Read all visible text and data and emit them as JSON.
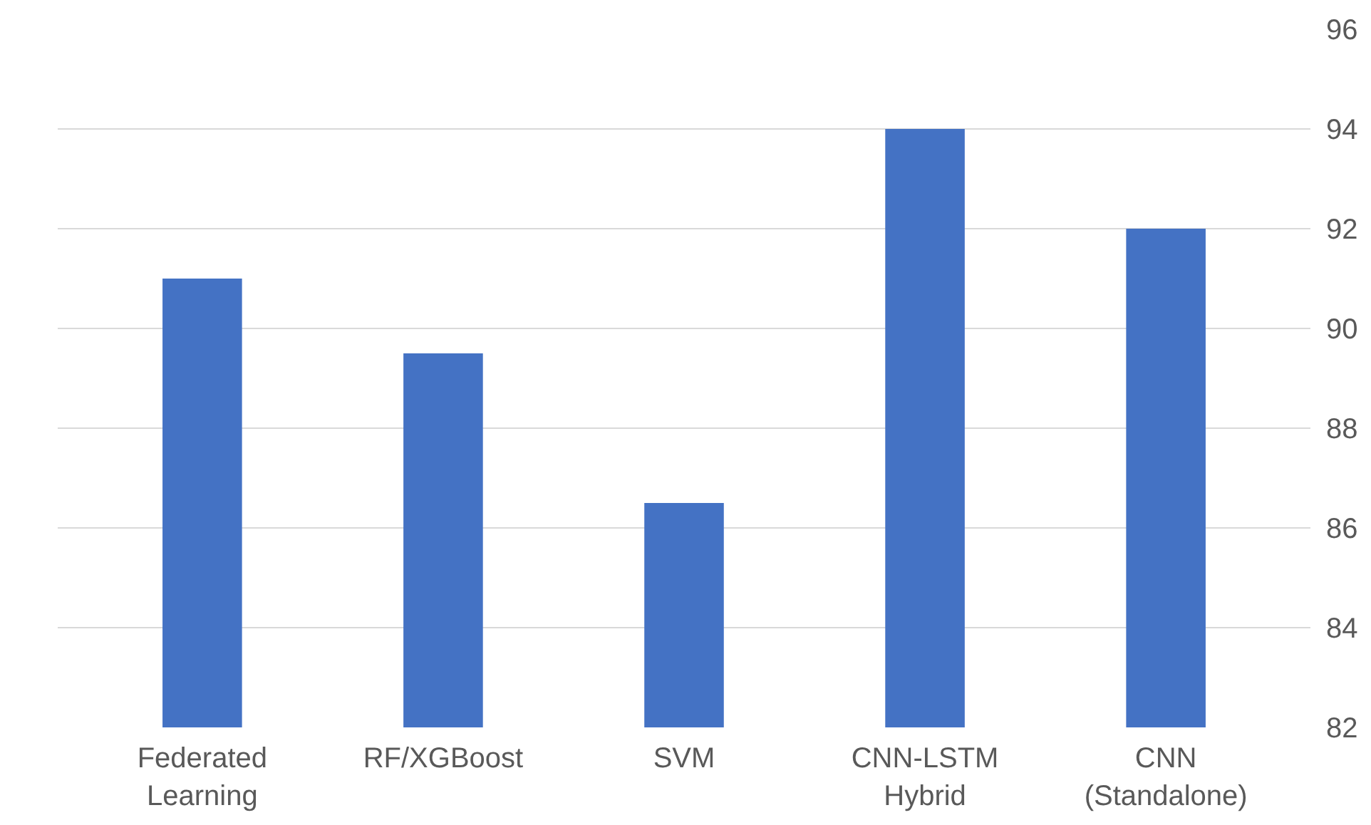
{
  "chart_data": {
    "type": "bar",
    "categories": [
      "Federated Learning",
      "RF/XGBoost",
      "SVM",
      "CNN-LSTM Hybrid",
      "CNN (Standalone)"
    ],
    "values": [
      91,
      89.5,
      86.5,
      94,
      92
    ],
    "color": "#4472c4",
    "ylim": [
      82,
      96
    ],
    "yticks": [
      82,
      84,
      86,
      88,
      90,
      92,
      94,
      96
    ],
    "grid": "y"
  }
}
